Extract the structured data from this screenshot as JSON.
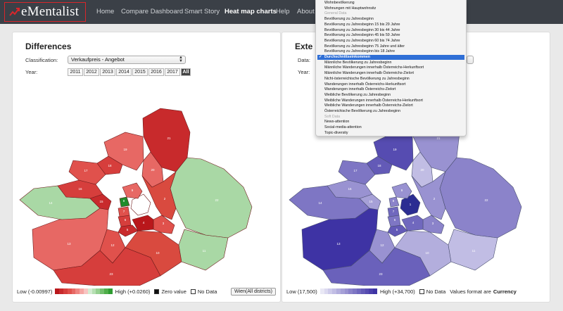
{
  "app": {
    "brand": "eMentalist",
    "nav": [
      "Home",
      "Compare Dashboard",
      "Smart Story",
      "Heat map charts",
      "Help",
      "About"
    ],
    "active_nav": "Heat map charts"
  },
  "left_panel": {
    "title": "Differences",
    "classification_label": "Classification:",
    "classification_value": "Verkaufpreis - Angebot",
    "year_label": "Year:",
    "years": [
      "2011",
      "2012",
      "2013",
      "2014",
      "2015",
      "2016",
      "2017",
      "All"
    ],
    "active_year": "All",
    "legend": {
      "low": "Low (-0.00997)",
      "high": "High (+0.0260)",
      "zero": "Zero value",
      "nodata": "No Data",
      "button": "Wien(All districts)",
      "colors": [
        "#b9171b",
        "#c82a2c",
        "#d63e3c",
        "#e0514c",
        "#e76864",
        "#ef8682",
        "#f5a5a2",
        "#f8c4c1",
        "#d4ecd2",
        "#b6dfb3",
        "#95d090",
        "#73bf6d",
        "#4fae4a",
        "#2e9c31"
      ]
    }
  },
  "right_panel": {
    "title": "Exte",
    "data_label": "Data:",
    "year_label": "Year:",
    "legend": {
      "low": "Low (17,500)",
      "high": "High (+34,700)",
      "nodata": "No Data",
      "format_prefix": "Values format are",
      "format_value": "Currency",
      "colors": [
        "#e9e8f5",
        "#dcdaf0",
        "#cecbea",
        "#c1bde4",
        "#b3aedd",
        "#a6a0d7",
        "#9992d1",
        "#8b83ca",
        "#7e76c4",
        "#7068be",
        "#635ab7",
        "#564cb1",
        "#4a3faa",
        "#3e33a4"
      ]
    }
  },
  "dropdown": {
    "items": [
      {
        "label": "Wohnbevölkerung",
        "type": "item"
      },
      {
        "label": "Wohnungen mit Hauptwohnsitz",
        "type": "item"
      },
      {
        "label": "General Data",
        "type": "group"
      },
      {
        "label": "Bevölkerung zu Jahresbeginn",
        "type": "item"
      },
      {
        "label": "Bevölkerung zu Jahresbeginn 15 bis 29 Jahre",
        "type": "item"
      },
      {
        "label": "Bevölkerung zu Jahresbeginn 30 bis 44 Jahre",
        "type": "item"
      },
      {
        "label": "Bevölkerung zu Jahresbeginn 45 bis 59 Jahre",
        "type": "item"
      },
      {
        "label": "Bevölkerung zu Jahresbeginn 60 bis 74 Jahre",
        "type": "item"
      },
      {
        "label": "Bevölkerung zu Jahresbeginn 75 Jahre und älter",
        "type": "item"
      },
      {
        "label": "Bevölkerung zu Jahresbeginn bis 18 Jahre",
        "type": "item"
      },
      {
        "label": "Durchschnittseinkommen",
        "type": "selected"
      },
      {
        "label": "Männliche Bevölkerung zu Jahresbeginn",
        "type": "item"
      },
      {
        "label": "Männliche Wanderungen innerhalb Österreichs-Herkunftsort",
        "type": "item"
      },
      {
        "label": "Männliche Wanderungen innerhalb Österreichs-Zielort",
        "type": "item"
      },
      {
        "label": "Nicht-österreichische Bevölkerung zu Jahresbeginn",
        "type": "item"
      },
      {
        "label": "Wanderungen innerhalb Österreichs-Herkunftsort",
        "type": "item"
      },
      {
        "label": "Wanderungen innerhalb Österreichs-Zielort",
        "type": "item"
      },
      {
        "label": "Weibliche Bevölkerung zu Jahresbeginn",
        "type": "item"
      },
      {
        "label": "Weibliche Wanderungen innerhalb Österreichs-Herkunftsort",
        "type": "item"
      },
      {
        "label": "Weibliche Wanderungen innerhalb Österreichs-Zielort",
        "type": "item"
      },
      {
        "label": "Österreichische Bevölkerung zu Jahresbeginn",
        "type": "item"
      },
      {
        "label": "Soft Data",
        "type": "group"
      },
      {
        "label": "News-attention",
        "type": "item"
      },
      {
        "label": "Social-media-attention",
        "type": "item"
      },
      {
        "label": "Topic-diversity",
        "type": "item"
      }
    ]
  },
  "maps": {
    "districts": [
      {
        "num": "1",
        "left": "#ffffff",
        "right": "#2b2d92"
      },
      {
        "num": "2",
        "left": "#d94a3f",
        "right": "#9992d1"
      },
      {
        "num": "3",
        "left": "#e0514c",
        "right": "#8b83ca"
      },
      {
        "num": "4",
        "left": "#b9171b",
        "right": "#7068be"
      },
      {
        "num": "5",
        "left": "#c82a2c",
        "right": "#635ab7"
      },
      {
        "num": "6",
        "left": "#d63e3c",
        "right": "#7e76c4"
      },
      {
        "num": "7",
        "left": "#e0514c",
        "right": "#7068be"
      },
      {
        "num": "8",
        "left": "#1f8c2a",
        "right": "#8b83ca"
      },
      {
        "num": "9",
        "left": "#e76864",
        "right": "#9992d1"
      },
      {
        "num": "10",
        "left": "#d94a3f",
        "right": "#b3aedd"
      },
      {
        "num": "11",
        "left": "#a9d8a5",
        "right": "#c1bde4"
      },
      {
        "num": "12",
        "left": "#e0514c",
        "right": "#9992d1"
      },
      {
        "num": "13",
        "left": "#e76864",
        "right": "#3e33a4"
      },
      {
        "num": "14",
        "left": "#a9d8a5",
        "right": "#7e76c4"
      },
      {
        "num": "15",
        "left": "#c82a2c",
        "right": "#a6a0d7"
      },
      {
        "num": "16",
        "left": "#d63e3c",
        "right": "#9992d1"
      },
      {
        "num": "17",
        "left": "#e0514c",
        "right": "#7e76c4"
      },
      {
        "num": "18",
        "left": "#d63e3c",
        "right": "#635ab7"
      },
      {
        "num": "19",
        "left": "#e76864",
        "right": "#564cb1"
      },
      {
        "num": "20",
        "left": "#e76864",
        "right": "#c1bde4"
      },
      {
        "num": "21",
        "left": "#c82a2c",
        "right": "#9992d1"
      },
      {
        "num": "22",
        "left": "#a9d8a5",
        "right": "#8b83ca"
      },
      {
        "num": "23",
        "left": "#d63e3c",
        "right": "#6a61bb"
      }
    ]
  }
}
